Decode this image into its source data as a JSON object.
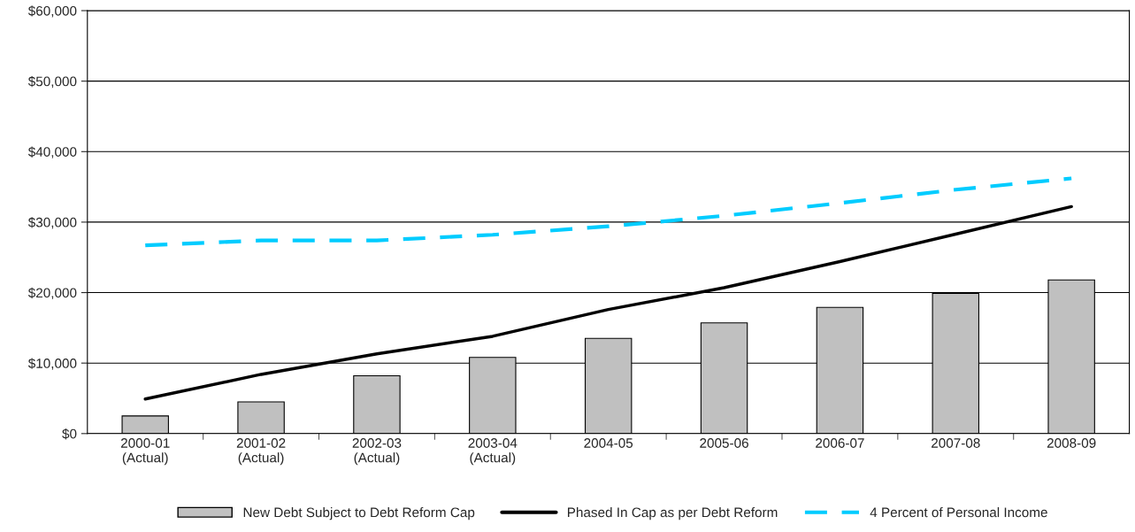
{
  "chart_data": {
    "type": "bar",
    "categories": [
      "2000-01\n(Actual)",
      "2001-02\n(Actual)",
      "2002-03\n(Actual)",
      "2003-04\n(Actual)",
      "2004-05",
      "2005-06",
      "2006-07",
      "2007-08",
      "2008-09"
    ],
    "series": [
      {
        "name": "New Debt Subject to Debt Reform Cap",
        "color": "#c0c0c0",
        "values": [
          2500,
          4500,
          8200,
          10800,
          13500,
          15700,
          17900,
          19900,
          21800
        ]
      },
      {
        "name": "Phased In Cap as per Debt Reform",
        "type": "line",
        "color": "#000000",
        "line_style": "solid",
        "values": [
          4900,
          8400,
          11300,
          13800,
          17600,
          20700,
          24400,
          28300,
          32200
        ]
      },
      {
        "name": "4 Percent of Personal Income",
        "type": "line",
        "color": "#00ccff",
        "line_style": "dashed",
        "values": [
          26700,
          27400,
          27400,
          28200,
          29400,
          30900,
          32700,
          34600,
          36200
        ]
      }
    ],
    "ylim": [
      0,
      60000
    ],
    "yticks": [
      {
        "value": 0,
        "label": "$0"
      },
      {
        "value": 10000,
        "label": "$10,000"
      },
      {
        "value": 20000,
        "label": "$20,000"
      },
      {
        "value": 30000,
        "label": "$30,000"
      },
      {
        "value": 40000,
        "label": "$40,000"
      },
      {
        "value": 50000,
        "label": "$50,000"
      },
      {
        "value": 60000,
        "label": "$60,000"
      }
    ],
    "grid": "y",
    "legend": "bottom",
    "marker": "none"
  }
}
